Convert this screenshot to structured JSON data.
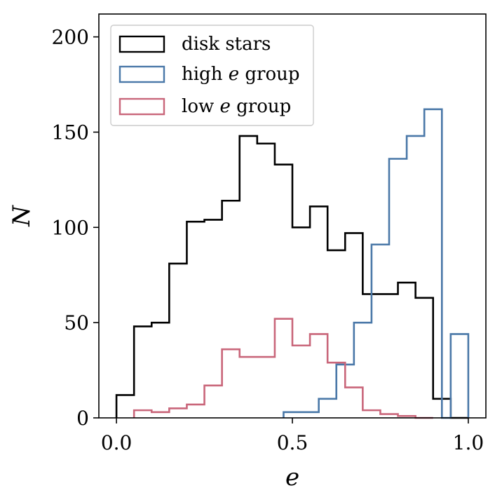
{
  "chart_data": {
    "type": "step-histogram",
    "xlabel": "e",
    "ylabel": "N",
    "xlim": [
      -0.05,
      1.05
    ],
    "ylim": [
      0,
      212
    ],
    "xticks": [
      0.0,
      0.5,
      1.0
    ],
    "xtick_labels": [
      "0.0",
      "0.5",
      "1.0"
    ],
    "yticks": [
      0,
      50,
      100,
      150,
      200
    ],
    "ytick_labels": [
      "0",
      "50",
      "100",
      "150",
      "200"
    ],
    "grid": false,
    "legend_position": "top-left",
    "series": [
      {
        "name": "disk stars",
        "color": "#000000",
        "bin_edges": [
          0.0,
          0.05,
          0.1,
          0.15,
          0.2,
          0.25,
          0.3,
          0.35,
          0.4,
          0.45,
          0.5,
          0.55,
          0.6,
          0.65,
          0.7,
          0.75,
          0.8,
          0.85,
          0.9,
          0.95,
          1.0
        ],
        "counts": [
          12,
          48,
          50,
          81,
          103,
          104,
          114,
          148,
          144,
          133,
          100,
          111,
          88,
          97,
          65,
          65,
          71,
          63,
          10,
          0
        ]
      },
      {
        "name": "high e group",
        "color": "#4a78a8",
        "bin_edges": [
          0.475,
          0.525,
          0.575,
          0.625,
          0.675,
          0.725,
          0.775,
          0.825,
          0.875,
          0.925,
          0.95,
          1.0
        ],
        "counts": [
          3,
          3,
          10,
          28,
          50,
          91,
          136,
          148,
          162,
          0,
          44
        ]
      },
      {
        "name": "low e group",
        "color": "#c9667a",
        "bin_edges": [
          0.05,
          0.1,
          0.15,
          0.2,
          0.25,
          0.3,
          0.35,
          0.4,
          0.45,
          0.5,
          0.55,
          0.6,
          0.65,
          0.7,
          0.75,
          0.8,
          0.85,
          0.9
        ],
        "counts": [
          4,
          3,
          5,
          7,
          17,
          36,
          32,
          32,
          52,
          38,
          44,
          29,
          16,
          4,
          2,
          1,
          0
        ]
      }
    ],
    "legend": {
      "entries": [
        {
          "text": "disk stars",
          "series": 0
        },
        {
          "text_parts": [
            "high ",
            "e",
            " group"
          ],
          "series": 1
        },
        {
          "text_parts": [
            "low ",
            "e",
            " group"
          ],
          "series": 2
        }
      ]
    }
  }
}
